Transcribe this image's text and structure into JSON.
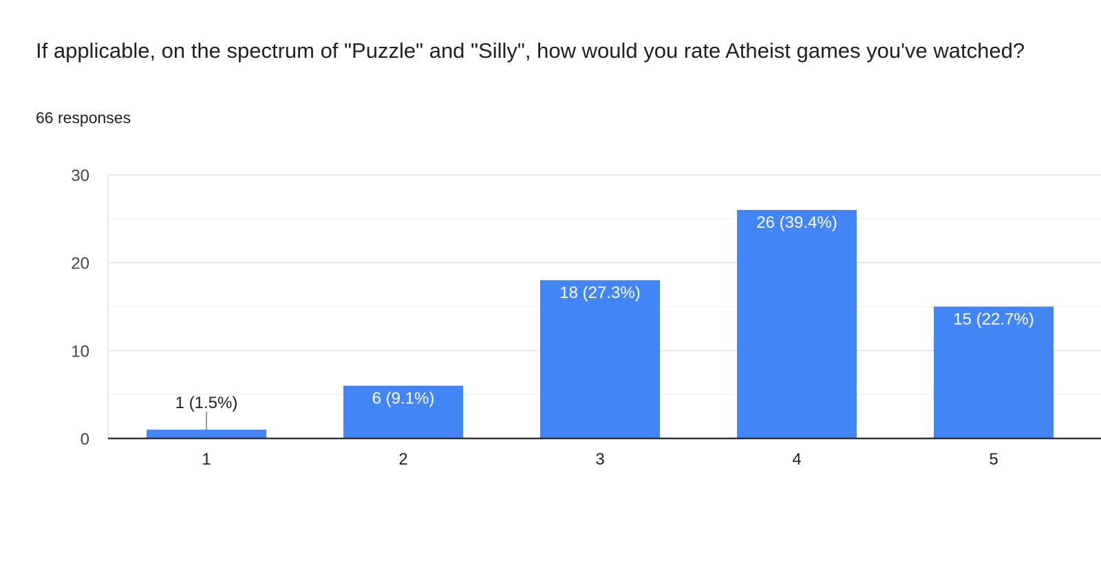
{
  "question": {
    "title": "If applicable, on the spectrum of \"Puzzle\" and \"Silly\", how would you rate Atheist games you've watched?",
    "responses": "66 responses"
  },
  "colors": {
    "bar": "#4285f4",
    "grid_major": "#e6e6e6",
    "grid_minor": "#f3f3f3",
    "axis": "#333333",
    "label_inside": "#ffffff",
    "label_outside": "#202124"
  },
  "chart_data": {
    "type": "bar",
    "categories": [
      "1",
      "2",
      "3",
      "4",
      "5"
    ],
    "values": [
      1,
      6,
      18,
      26,
      15
    ],
    "data_labels": [
      "1 (1.5%)",
      "6 (9.1%)",
      "18 (27.3%)",
      "26 (39.4%)",
      "15 (22.7%)"
    ],
    "y_ticks": [
      "0",
      "10",
      "20",
      "30"
    ],
    "ylim": [
      0,
      30
    ],
    "grid": true,
    "title": "",
    "xlabel": "",
    "ylabel": ""
  }
}
